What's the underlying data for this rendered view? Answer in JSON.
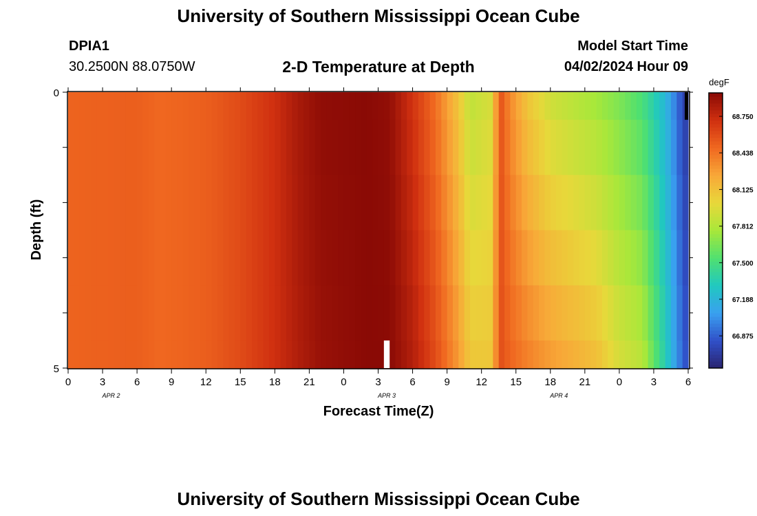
{
  "header": {
    "title": "University of Southern Mississippi Ocean Cube",
    "station_id": "DPIA1",
    "coordinates": "30.2500N  88.0750W",
    "plot_title": "2-D Temperature at Depth",
    "model_start_label": "Model Start Time",
    "model_start_value": "04/02/2024 Hour 09"
  },
  "footer": {
    "title": "University of Southern Mississippi Ocean Cube"
  },
  "chart_data": {
    "type": "heatmap",
    "title": "2-D Temperature at Depth",
    "xlabel": "Forecast Time(Z)",
    "ylabel": "Depth (ft)",
    "x_tick_labels": [
      "0",
      "3",
      "6",
      "9",
      "12",
      "15",
      "18",
      "21",
      "0",
      "3",
      "6",
      "9",
      "12",
      "15",
      "18",
      "21",
      "0",
      "3",
      "6"
    ],
    "date_labels": [
      {
        "text": "APR 2",
        "at_hour": 3.75
      },
      {
        "text": "APR 3",
        "at_hour": 27.75
      },
      {
        "text": "APR 4",
        "at_hour": 42.75
      }
    ],
    "x_range_hours": [
      0,
      54
    ],
    "y_tick_labels": [
      "0",
      "5"
    ],
    "y_range_ft": [
      0,
      5
    ],
    "depth_levels_ft": [
      0,
      0.5,
      1.5,
      2.5,
      3.5,
      4.5
    ],
    "time_step_hours": 0.5,
    "colorbar": {
      "unit": "degF",
      "range": [
        66.6,
        68.95
      ],
      "tick_values": [
        "68.750",
        "68.438",
        "68.125",
        "67.812",
        "67.500",
        "67.188",
        "66.875"
      ],
      "colors": [
        "#2a2470",
        "#3050c8",
        "#3aa0f0",
        "#20c8c0",
        "#50e070",
        "#a8e83a",
        "#e8d83a",
        "#f8a838",
        "#f06820",
        "#d03010",
        "#8a0a05"
      ]
    },
    "temperature_profile": [
      {
        "hour": 0,
        "surface": 68.5,
        "bottom": 68.5
      },
      {
        "hour": 6,
        "surface": 68.52,
        "bottom": 68.52
      },
      {
        "hour": 8,
        "surface": 68.48,
        "bottom": 68.48
      },
      {
        "hour": 12,
        "surface": 68.52,
        "bottom": 68.52
      },
      {
        "hour": 15,
        "surface": 68.6,
        "bottom": 68.6
      },
      {
        "hour": 18,
        "surface": 68.72,
        "bottom": 68.72
      },
      {
        "hour": 20,
        "surface": 68.85,
        "bottom": 68.82
      },
      {
        "hour": 22,
        "surface": 68.93,
        "bottom": 68.9
      },
      {
        "hour": 26,
        "surface": 68.95,
        "bottom": 68.95
      },
      {
        "hour": 28,
        "surface": 68.92,
        "bottom": 68.95
      },
      {
        "hour": 30,
        "surface": 68.7,
        "bottom": 68.82
      },
      {
        "hour": 32,
        "surface": 68.45,
        "bottom": 68.6
      },
      {
        "hour": 34,
        "surface": 68.1,
        "bottom": 68.3
      },
      {
        "hour": 35,
        "surface": 67.85,
        "bottom": 68.1
      },
      {
        "hour": 37,
        "surface": 67.95,
        "bottom": 68.1
      },
      {
        "hour": 37.5,
        "surface": 68.6,
        "bottom": 68.6
      },
      {
        "hour": 38.5,
        "surface": 68.35,
        "bottom": 68.5
      },
      {
        "hour": 40,
        "surface": 68.1,
        "bottom": 68.4
      },
      {
        "hour": 42,
        "surface": 67.9,
        "bottom": 68.3
      },
      {
        "hour": 46,
        "surface": 67.75,
        "bottom": 68.15
      },
      {
        "hour": 48,
        "surface": 67.65,
        "bottom": 67.95
      },
      {
        "hour": 50,
        "surface": 67.5,
        "bottom": 67.85
      },
      {
        "hour": 52,
        "surface": 67.2,
        "bottom": 67.35
      },
      {
        "hour": 53.5,
        "surface": 66.8,
        "bottom": 66.9
      },
      {
        "hour": 54,
        "surface": 66.7,
        "bottom": 66.8
      }
    ],
    "gaps": [
      {
        "hour_start": 27.5,
        "hour_end": 28.0,
        "depth_from_ft": 4.5,
        "depth_to_ft": 5.0
      },
      {
        "hour_start": 53.7,
        "hour_end": 54.0,
        "depth_from_ft": 0.0,
        "depth_to_ft": 0.5
      }
    ]
  }
}
